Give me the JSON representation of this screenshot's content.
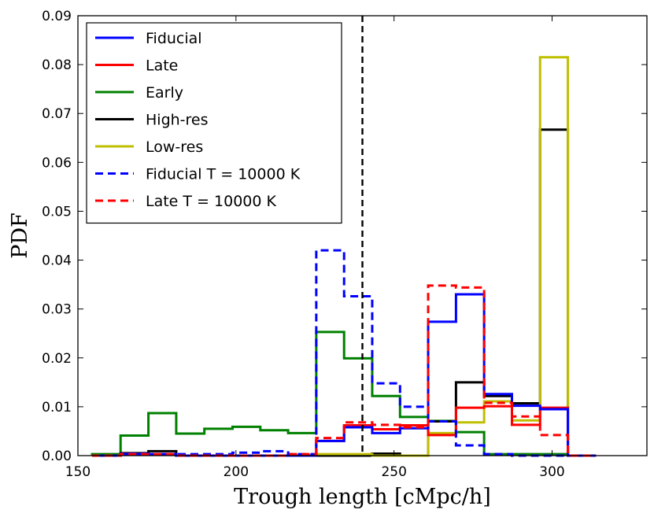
{
  "chart_data": {
    "type": "histogram-step",
    "title": "",
    "xlabel": "Trough length [cMpc/h]",
    "ylabel": "PDF",
    "xlim": [
      150,
      330
    ],
    "ylim": [
      0,
      0.09
    ],
    "xticks": [
      150,
      200,
      250,
      300
    ],
    "yticks": [
      0.0,
      0.01,
      0.02,
      0.03,
      0.04,
      0.05,
      0.06,
      0.07,
      0.08,
      0.09
    ],
    "ytick_labels": [
      "0.00",
      "0.01",
      "0.02",
      "0.03",
      "0.04",
      "0.05",
      "0.06",
      "0.07",
      "0.08",
      "0.09"
    ],
    "vline": {
      "x": 240,
      "style": "dashed",
      "color": "#000000"
    },
    "bin_edges": [
      154.5,
      163.5,
      172.3,
      181.1,
      190,
      198.9,
      207.7,
      216.5,
      225.4,
      234.2,
      243.1,
      251.9,
      260.8,
      269.6,
      278.5,
      287.3,
      296.2,
      305,
      313.9
    ],
    "series": [
      {
        "name": "Early",
        "color": "#008000",
        "dash": false,
        "values": [
          0.0003,
          0.0041,
          0.0087,
          0.0045,
          0.0055,
          0.0059,
          0.0052,
          0.0046,
          0.0253,
          0.0199,
          0.0122,
          0.0079,
          0.0071,
          0.0048,
          0.0003,
          0.0003,
          0.0003,
          0.0
        ]
      },
      {
        "name": "High-res",
        "color": "#000000",
        "dash": false,
        "values": [
          0.0,
          0.0005,
          0.0009,
          0.0,
          0.0,
          0.0,
          0.0,
          0.0,
          0.0,
          0.0,
          0.0004,
          0.0,
          0.007,
          0.015,
          0.0122,
          0.0107,
          0.0667,
          0.0
        ]
      },
      {
        "name": "Low-res",
        "color": "#bfbf00",
        "dash": false,
        "values": [
          0.0,
          0.0003,
          0.0003,
          0.0,
          0.0,
          0.0,
          0.0,
          0.0,
          0.0003,
          0.0003,
          0.0,
          0.0,
          0.0046,
          0.0068,
          0.0111,
          0.0072,
          0.0815,
          0.0
        ]
      },
      {
        "name": "Late",
        "color": "#ff0000",
        "dash": false,
        "values": [
          0.0,
          0.0003,
          0.0003,
          0.0,
          0.0,
          0.0,
          0.0,
          0.0,
          0.003,
          0.0062,
          0.0054,
          0.0062,
          0.0042,
          0.0098,
          0.0101,
          0.0063,
          0.0098,
          0.0
        ]
      },
      {
        "name": "Fiducial",
        "color": "#0000ff",
        "dash": false,
        "values": [
          0.0,
          0.0003,
          0.0003,
          0.0,
          0.0,
          0.0,
          0.0,
          0.0,
          0.003,
          0.0058,
          0.0046,
          0.0056,
          0.0274,
          0.033,
          0.0126,
          0.0102,
          0.0095,
          0.0
        ]
      },
      {
        "name": "Fiducial T = 10000 K",
        "color": "#0000ff",
        "dash": true,
        "values": [
          0.0,
          0.0004,
          0.0003,
          0.0003,
          0.0003,
          0.0006,
          0.0009,
          0.0003,
          0.042,
          0.0326,
          0.0148,
          0.01,
          0.007,
          0.0021,
          0.0003,
          0.0,
          0.0,
          0.0
        ]
      },
      {
        "name": "Late T = 10000 K",
        "color": "#ff0000",
        "dash": true,
        "values": [
          0.0,
          0.0003,
          0.0003,
          0.0,
          0.0,
          0.0,
          0.0,
          0.0003,
          0.0036,
          0.0068,
          0.0063,
          0.0058,
          0.0348,
          0.0344,
          0.0108,
          0.008,
          0.0042,
          0.0
        ]
      }
    ],
    "legend": {
      "placement": "top-left",
      "entries": [
        {
          "name": "Fiducial",
          "color": "#0000ff",
          "dash": false
        },
        {
          "name": "Late",
          "color": "#ff0000",
          "dash": false
        },
        {
          "name": "Early",
          "color": "#008000",
          "dash": false
        },
        {
          "name": "High-res",
          "color": "#000000",
          "dash": false
        },
        {
          "name": "Low-res",
          "color": "#bfbf00",
          "dash": false
        },
        {
          "name": "Fiducial T = 10000 K",
          "color": "#0000ff",
          "dash": true
        },
        {
          "name": "Late T = 10000 K",
          "color": "#ff0000",
          "dash": true
        }
      ]
    }
  }
}
